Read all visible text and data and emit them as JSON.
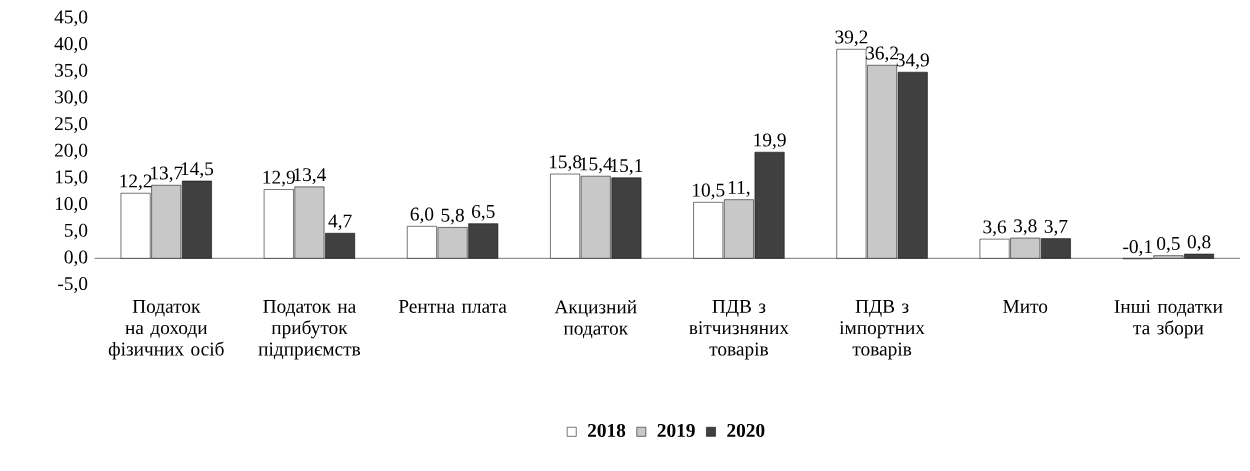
{
  "chart_data": {
    "type": "bar",
    "categories": [
      "Податок на доходи фізичних осіб",
      "Податок на прибуток підприємств",
      "Рентна плата",
      "Акцизний податок",
      "ПДВ з вітчизняних товарів",
      "ПДВ з імпортних товарів",
      "Мито",
      "Інші податки та збори"
    ],
    "series": [
      {
        "name": "2018",
        "color": "#ffffff",
        "values": [
          12.2,
          12.9,
          6.0,
          15.8,
          10.5,
          39.2,
          3.6,
          -0.1
        ],
        "value_labels": [
          "12,2",
          "12,9",
          "6,0",
          "15,8",
          "10,5",
          "39,2",
          "3,6",
          "-0,1"
        ]
      },
      {
        "name": "2019",
        "color": "#c8c8c8",
        "values": [
          13.7,
          13.4,
          5.8,
          15.4,
          11.0,
          36.2,
          3.8,
          0.5
        ],
        "value_labels": [
          "13,7",
          "13,4",
          "5,8",
          "15,4",
          "11,",
          "36,2",
          "3,8",
          "0,5"
        ]
      },
      {
        "name": "2020",
        "color": "#404040",
        "values": [
          14.5,
          4.7,
          6.5,
          15.1,
          19.9,
          34.9,
          3.7,
          0.8
        ],
        "value_labels": [
          "14,5",
          "4,7",
          "6,5",
          "15,1",
          "19,9",
          "34,9",
          "3,7",
          "0,8"
        ]
      }
    ],
    "ylim": [
      -5,
      45
    ],
    "yticks": [
      {
        "value": -5,
        "label": "-5,0"
      },
      {
        "value": 0,
        "label": "0,0"
      },
      {
        "value": 5,
        "label": "5,0"
      },
      {
        "value": 10,
        "label": "10,0"
      },
      {
        "value": 15,
        "label": "15,0"
      },
      {
        "value": 20,
        "label": "20,0"
      },
      {
        "value": 25,
        "label": "25,0"
      },
      {
        "value": 30,
        "label": "30,0"
      },
      {
        "value": 35,
        "label": "35,0"
      },
      {
        "value": 40,
        "label": "40,0"
      },
      {
        "value": 45,
        "label": "45,0"
      }
    ],
    "legend": "bottom"
  }
}
